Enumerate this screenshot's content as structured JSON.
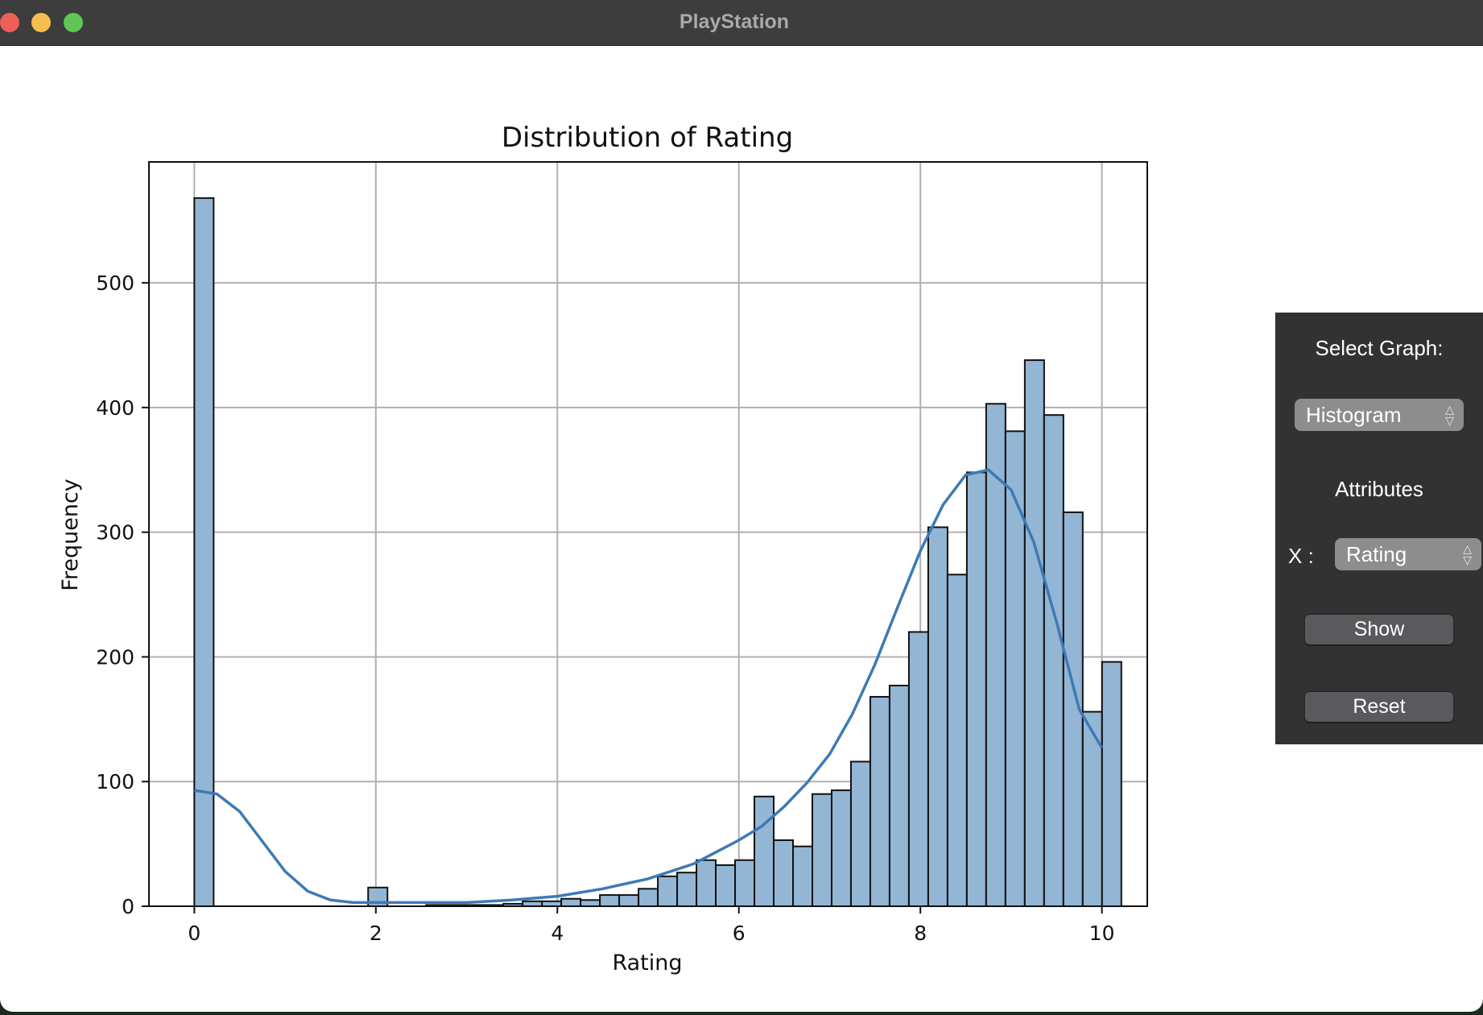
{
  "window": {
    "title": "PlayStation"
  },
  "panel": {
    "select_graph_label": "Select Graph:",
    "graph_type": "Histogram",
    "attributes_label": "Attributes",
    "x_label": "X :",
    "x_value": "Rating",
    "show_label": "Show",
    "reset_label": "Reset"
  },
  "colors": {
    "bar_fill": "#94b6d5",
    "bar_edge": "#111111",
    "kde_line": "#3d7ab5",
    "grid": "#b0b0b0",
    "panel_bg": "#323232"
  },
  "chart_data": {
    "type": "bar",
    "title": "Distribution of Rating",
    "xlabel": "Rating",
    "ylabel": "Frequency",
    "xlim": [
      -0.5,
      10.5
    ],
    "ylim": [
      0,
      597
    ],
    "xticks": [
      0,
      2,
      4,
      6,
      8,
      10
    ],
    "yticks": [
      0,
      100,
      200,
      300,
      400,
      500
    ],
    "grid": true,
    "bin_start": 0,
    "bin_width": 0.2128,
    "counts": [
      568,
      0,
      0,
      0,
      0,
      0,
      0,
      0,
      0,
      15,
      0,
      0,
      1,
      1,
      1,
      1,
      2,
      4,
      4,
      6,
      5,
      9,
      9,
      14,
      24,
      27,
      37,
      33,
      37,
      88,
      53,
      48,
      90,
      93,
      116,
      168,
      177,
      220,
      304,
      266,
      348,
      403,
      381,
      438,
      394,
      316,
      156,
      196
    ],
    "kde": {
      "x": [
        0,
        0.25,
        0.5,
        0.75,
        1,
        1.25,
        1.5,
        1.75,
        2,
        2.5,
        3,
        3.5,
        4,
        4.5,
        5,
        5.5,
        6,
        6.25,
        6.5,
        6.75,
        7,
        7.25,
        7.5,
        7.75,
        8,
        8.25,
        8.5,
        8.75,
        9,
        9.25,
        9.5,
        9.75,
        10
      ],
      "y": [
        93,
        90,
        76,
        52,
        28,
        12,
        5,
        3,
        3,
        3,
        3,
        5,
        8,
        14,
        22,
        34,
        53,
        64,
        80,
        99,
        122,
        154,
        194,
        240,
        285,
        322,
        346,
        350,
        334,
        292,
        228,
        158,
        127
      ]
    }
  }
}
